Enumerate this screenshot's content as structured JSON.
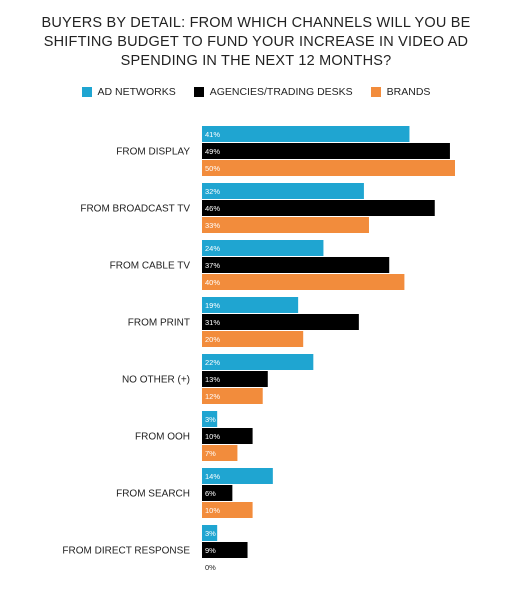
{
  "chart_data": {
    "type": "bar",
    "orientation": "horizontal",
    "title": "BUYERS BY DETAIL: FROM WHICH CHANNELS WILL YOU BE SHIFTING BUDGET TO FUND YOUR INCREASE IN VIDEO AD SPENDING IN THE NEXT 12 MONTHS?",
    "categories": [
      "FROM DISPLAY",
      "FROM BROADCAST TV",
      "FROM CABLE TV",
      "FROM PRINT",
      "NO OTHER (+)",
      "FROM OOH",
      "FROM SEARCH",
      "FROM DIRECT RESPONSE"
    ],
    "series": [
      {
        "name": "AD NETWORKS",
        "color": "#1fa5d1",
        "values": [
          41,
          32,
          24,
          19,
          22,
          3,
          14,
          3
        ]
      },
      {
        "name": "AGENCIES/TRADING DESKS",
        "color": "#000000",
        "values": [
          49,
          46,
          37,
          31,
          13,
          10,
          6,
          9
        ]
      },
      {
        "name": "BRANDS",
        "color": "#f28c3c",
        "values": [
          50,
          33,
          40,
          20,
          12,
          7,
          10,
          0
        ]
      }
    ],
    "value_suffix": "%",
    "xlim": [
      0,
      55
    ],
    "grid": false,
    "legend_position": "top"
  }
}
